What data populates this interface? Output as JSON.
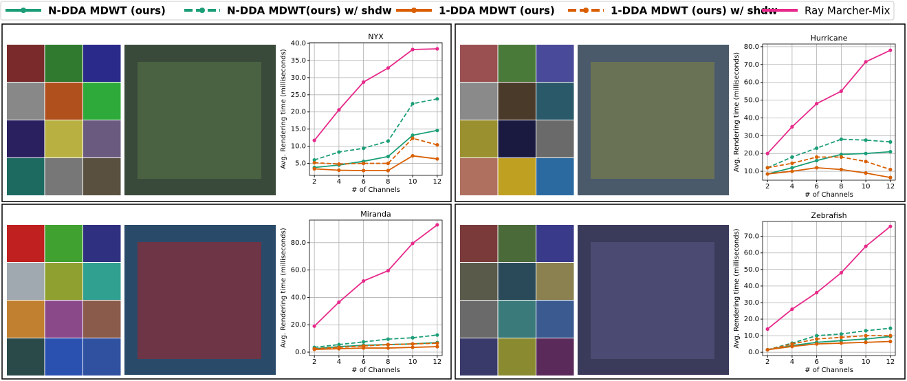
{
  "legend": [
    {
      "name": "N-DDA MDWT (ours)",
      "color": "#1b9e77",
      "dashed": false,
      "bold": true
    },
    {
      "name": "N-DDA MDWT(ours) w/ shdw",
      "color": "#1b9e77",
      "dashed": true,
      "bold": true
    },
    {
      "name": "1-DDA MDWT (ours)",
      "color": "#d95f02",
      "dashed": false,
      "bold": true
    },
    {
      "name": "1-DDA MDWT (ours) w/ shdw",
      "color": "#d95f02",
      "dashed": true,
      "bold": true
    },
    {
      "name": "Ray Marcher-Mix",
      "color": "#e7298a",
      "dashed": false,
      "bold": false
    }
  ],
  "chart_data": [
    {
      "type": "line",
      "title": "NYX",
      "x_label": "# of Channels",
      "y_label": "Avg. Rendering time (milliseconds)",
      "x": [
        2,
        4,
        6,
        8,
        10,
        12
      ],
      "xlim": [
        1.6,
        12.4
      ],
      "xticks": [
        2,
        4,
        6,
        8,
        10,
        12
      ],
      "ylim": [
        1.5,
        40.2
      ],
      "yticks": [
        {
          "value": 5,
          "label": "5.0"
        },
        {
          "value": 10,
          "label": "10.0"
        },
        {
          "value": 15,
          "label": "15.0"
        },
        {
          "value": 20,
          "label": "20.0"
        },
        {
          "value": 25,
          "label": "25.0"
        },
        {
          "value": 30,
          "label": "30.0"
        },
        {
          "value": 35,
          "label": "35.0"
        },
        {
          "value": 40,
          "label": "40.0"
        }
      ],
      "grid": true,
      "series": [
        {
          "color": "#1b9e77",
          "dashed": false,
          "values": [
            3.8,
            4.5,
            5.6,
            7.0,
            13.2,
            14.6
          ]
        },
        {
          "color": "#1b9e77",
          "dashed": true,
          "values": [
            6.0,
            8.3,
            9.4,
            11.5,
            22.4,
            23.8
          ]
        },
        {
          "color": "#d95f02",
          "dashed": false,
          "values": [
            3.4,
            3.0,
            2.9,
            2.9,
            7.2,
            6.3
          ]
        },
        {
          "color": "#d95f02",
          "dashed": true,
          "values": [
            5.2,
            4.8,
            5.0,
            5.0,
            12.3,
            10.4
          ]
        },
        {
          "color": "#e7298a",
          "dashed": false,
          "values": [
            11.7,
            20.6,
            28.7,
            32.8,
            38.2,
            38.4
          ]
        }
      ]
    },
    {
      "type": "line",
      "title": "Hurricane",
      "x_label": "# of Channels",
      "y_label": "Avg. Rendering time (milliseconds)",
      "x": [
        2,
        4,
        6,
        8,
        10,
        12
      ],
      "xlim": [
        1.6,
        12.4
      ],
      "xticks": [
        2,
        4,
        6,
        8,
        10,
        12
      ],
      "ylim": [
        5,
        81.5
      ],
      "yticks": [
        {
          "value": 10,
          "label": "10.0"
        },
        {
          "value": 20,
          "label": "20.0"
        },
        {
          "value": 30,
          "label": "30.0"
        },
        {
          "value": 40,
          "label": "40.0"
        },
        {
          "value": 50,
          "label": "50.0"
        },
        {
          "value": 60,
          "label": "60.0"
        },
        {
          "value": 70,
          "label": "70.0"
        },
        {
          "value": 80,
          "label": "80.0"
        }
      ],
      "grid": true,
      "series": [
        {
          "color": "#1b9e77",
          "dashed": false,
          "values": [
            8.5,
            12,
            16,
            19.5,
            20,
            21
          ]
        },
        {
          "color": "#1b9e77",
          "dashed": true,
          "values": [
            12,
            18,
            23,
            28,
            27.5,
            26.5
          ]
        },
        {
          "color": "#d95f02",
          "dashed": false,
          "values": [
            8.5,
            10,
            12,
            11,
            9,
            6.5
          ]
        },
        {
          "color": "#d95f02",
          "dashed": true,
          "values": [
            12,
            14.5,
            18,
            18,
            15.5,
            11
          ]
        },
        {
          "color": "#e7298a",
          "dashed": false,
          "values": [
            20,
            35,
            48,
            55,
            71.5,
            78
          ]
        }
      ]
    },
    {
      "type": "line",
      "title": "Miranda",
      "x_label": "# of Channels",
      "y_label": "Avg. Rendering time (milliseconds)",
      "x": [
        2,
        4,
        6,
        8,
        10,
        12
      ],
      "xlim": [
        1.6,
        12.4
      ],
      "xticks": [
        2,
        4,
        6,
        8,
        10,
        12
      ],
      "ylim": [
        -2.5,
        96.5
      ],
      "yticks": [
        {
          "value": 0,
          "label": "0.0"
        },
        {
          "value": 20,
          "label": "20.0"
        },
        {
          "value": 40,
          "label": "40.0"
        },
        {
          "value": 60,
          "label": "60.0"
        },
        {
          "value": 80,
          "label": "80.0"
        }
      ],
      "grid": true,
      "series": [
        {
          "color": "#1b9e77",
          "dashed": false,
          "values": [
            2.5,
            4,
            5,
            5.5,
            6,
            7
          ]
        },
        {
          "color": "#1b9e77",
          "dashed": true,
          "values": [
            3.5,
            5.5,
            7.5,
            9.5,
            10.5,
            12.5
          ]
        },
        {
          "color": "#d95f02",
          "dashed": false,
          "values": [
            2,
            2.5,
            3,
            3,
            3.5,
            4
          ]
        },
        {
          "color": "#d95f02",
          "dashed": true,
          "values": [
            2.5,
            3.5,
            4.5,
            5.5,
            6,
            6.5
          ]
        },
        {
          "color": "#e7298a",
          "dashed": false,
          "values": [
            19,
            36.5,
            52,
            59.5,
            79.5,
            93
          ]
        }
      ]
    },
    {
      "type": "line",
      "title": "Zebrafish",
      "x_label": "# of Channels",
      "y_label": "Avg. Rendering time (milliseconds)",
      "x": [
        2,
        4,
        6,
        8,
        10,
        12
      ],
      "xlim": [
        1.6,
        12.4
      ],
      "xticks": [
        2,
        4,
        6,
        8,
        10,
        12
      ],
      "ylim": [
        -2,
        79
      ],
      "yticks": [
        {
          "value": 0,
          "label": "0.0"
        },
        {
          "value": 10,
          "label": "10.0"
        },
        {
          "value": 20,
          "label": "20.0"
        },
        {
          "value": 30,
          "label": "30.0"
        },
        {
          "value": 40,
          "label": "40.0"
        },
        {
          "value": 50,
          "label": "50.0"
        },
        {
          "value": 60,
          "label": "60.0"
        },
        {
          "value": 70,
          "label": "70.0"
        }
      ],
      "grid": true,
      "series": [
        {
          "color": "#1b9e77",
          "dashed": false,
          "values": [
            1.5,
            4,
            6,
            7,
            8,
            9.5
          ]
        },
        {
          "color": "#1b9e77",
          "dashed": true,
          "values": [
            1.5,
            5.5,
            10,
            11,
            13,
            14.5
          ]
        },
        {
          "color": "#d95f02",
          "dashed": false,
          "values": [
            1.5,
            3.5,
            5,
            5.5,
            6,
            6.5
          ]
        },
        {
          "color": "#d95f02",
          "dashed": true,
          "values": [
            1.5,
            5,
            8,
            9,
            10,
            10
          ]
        },
        {
          "color": "#e7298a",
          "dashed": false,
          "values": [
            14,
            26,
            36,
            48,
            64,
            76
          ]
        }
      ]
    }
  ]
}
